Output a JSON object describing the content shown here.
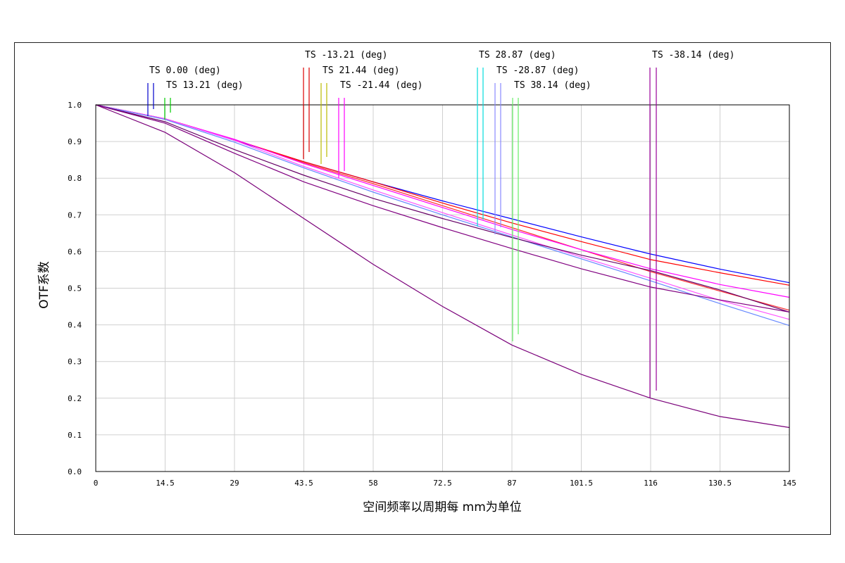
{
  "chart_data": {
    "type": "line",
    "title": "",
    "xlabel": "空间频率以周期每 mm为单位",
    "ylabel": "OTF系数",
    "xlim": [
      0,
      145
    ],
    "ylim": [
      0,
      1.0
    ],
    "grid": true,
    "x_ticks": [
      "0",
      "14.5",
      "29",
      "43.5",
      "58",
      "72.5",
      "87",
      "101.5",
      "116",
      "130.5",
      "145"
    ],
    "y_ticks": [
      "0.0",
      "0.1",
      "0.2",
      "0.3",
      "0.4",
      "0.5",
      "0.6",
      "0.7",
      "0.8",
      "0.9",
      "1.0"
    ],
    "legend_labels": [
      {
        "text": "TS 0.00 (deg)",
        "colors": [
          "#0000cc",
          "#0000cc"
        ]
      },
      {
        "text": "TS 13.21 (deg)",
        "colors": [
          "#00cc00",
          "#00cc00"
        ]
      },
      {
        "text": "TS -13.21 (deg)",
        "colors": [
          "#dd0000",
          "#dd0000"
        ]
      },
      {
        "text": "TS 21.44 (deg)",
        "colors": [
          "#bbbb00",
          "#bbbb00"
        ]
      },
      {
        "text": "TS -21.44 (deg)",
        "colors": [
          "#ff00ff",
          "#ff00ff"
        ]
      },
      {
        "text": "TS 28.87 (deg)",
        "colors": [
          "#00dddd",
          "#00dddd"
        ]
      },
      {
        "text": "TS -28.87 (deg)",
        "colors": [
          "#8888ff",
          "#8888ff"
        ]
      },
      {
        "text": "TS 38.14 (deg)",
        "colors": [
          "#66ee66",
          "#66ee66"
        ]
      },
      {
        "text": "TS -38.14 (deg)",
        "colors": [
          "#990099",
          "#990099"
        ]
      }
    ],
    "x": [
      0,
      14.5,
      29,
      43.5,
      58,
      72.5,
      87,
      101.5,
      116,
      130.5,
      145
    ],
    "series": [
      {
        "color": "#0000ff",
        "values": [
          1.0,
          0.962,
          0.903,
          0.845,
          0.79,
          0.738,
          0.689,
          0.64,
          0.593,
          0.552,
          0.515
        ]
      },
      {
        "color": "#ff0000",
        "values": [
          1.0,
          0.962,
          0.905,
          0.845,
          0.79,
          0.732,
          0.678,
          0.627,
          0.578,
          0.542,
          0.508
        ]
      },
      {
        "color": "#ff3030",
        "values": [
          1.0,
          0.962,
          0.905,
          0.842,
          0.785,
          0.725,
          0.665,
          0.605,
          0.545,
          0.492,
          0.44
        ]
      },
      {
        "color": "#ff00ff",
        "values": [
          1.0,
          0.962,
          0.906,
          0.84,
          0.78,
          0.72,
          0.66,
          0.605,
          0.553,
          0.51,
          0.475
        ]
      },
      {
        "color": "#ff55ff",
        "values": [
          1.0,
          0.962,
          0.903,
          0.832,
          0.768,
          0.706,
          0.645,
          0.585,
          0.527,
          0.467,
          0.415
        ]
      },
      {
        "color": "#6688ff",
        "values": [
          1.0,
          0.96,
          0.898,
          0.828,
          0.762,
          0.7,
          0.64,
          0.58,
          0.52,
          0.458,
          0.398
        ]
      },
      {
        "color": "#660066",
        "values": [
          1.0,
          0.954,
          0.878,
          0.808,
          0.745,
          0.69,
          0.638,
          0.59,
          0.548,
          0.495,
          0.435
        ]
      },
      {
        "color": "#800080",
        "values": [
          1.0,
          0.95,
          0.868,
          0.79,
          0.725,
          0.665,
          0.608,
          0.553,
          0.503,
          0.468,
          0.435
        ]
      },
      {
        "color": "#7a007a",
        "values": [
          1.0,
          0.925,
          0.815,
          0.69,
          0.565,
          0.45,
          0.345,
          0.265,
          0.2,
          0.15,
          0.12
        ]
      }
    ]
  }
}
